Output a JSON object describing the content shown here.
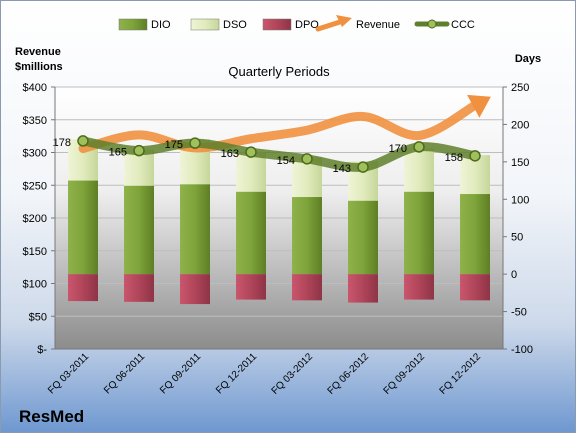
{
  "chart_data": {
    "type": "bar",
    "title": "Quarterly Periods",
    "company": "ResMed",
    "y_left_label_line1": "Revenue",
    "y_left_label_line2": "$millions",
    "y_right_label": "Days",
    "categories": [
      "FQ 03-2011",
      "FQ 06-2011",
      "FQ 09-2011",
      "FQ 12-2011",
      "FQ 03-2012",
      "FQ 06-2012",
      "FQ 09-2012",
      "FQ 12-2012"
    ],
    "left_ticks": [
      "$-",
      "$50",
      "$100",
      "$150",
      "$200",
      "$250",
      "$300",
      "$350",
      "$400"
    ],
    "right_ticks": [
      "-100",
      "-50",
      "0",
      "50",
      "100",
      "150",
      "200",
      "250"
    ],
    "ylim_left": [
      0,
      400
    ],
    "ylim_right": [
      -100,
      250
    ],
    "series": [
      {
        "name": "DIO",
        "kind": "bar",
        "color": "#7ea33a",
        "values": [
          125,
          118,
          120,
          110,
          103,
          98,
          110,
          107
        ]
      },
      {
        "name": "DSO",
        "kind": "bar",
        "color": "#e4edc4",
        "values": [
          55,
          48,
          60,
          52,
          53,
          53,
          58,
          52
        ]
      },
      {
        "name": "DPO",
        "kind": "bar",
        "color": "#b8475e",
        "values": [
          -36,
          -37,
          -40,
          -34,
          -35,
          -38,
          -34,
          -35
        ]
      },
      {
        "name": "Revenue",
        "kind": "line",
        "color": "#f0913f",
        "values": [
          306,
          327,
          307,
          321,
          334,
          355,
          326,
          372
        ]
      },
      {
        "name": "CCC",
        "kind": "line",
        "color": "#5f7f2b",
        "values": [
          178,
          165,
          175,
          163,
          154,
          143,
          170,
          158
        ]
      }
    ],
    "ccc_labels": [
      "178",
      "165",
      "175",
      "163",
      "154",
      "143",
      "170",
      "158"
    ],
    "grid": true,
    "legend_position": "top"
  }
}
